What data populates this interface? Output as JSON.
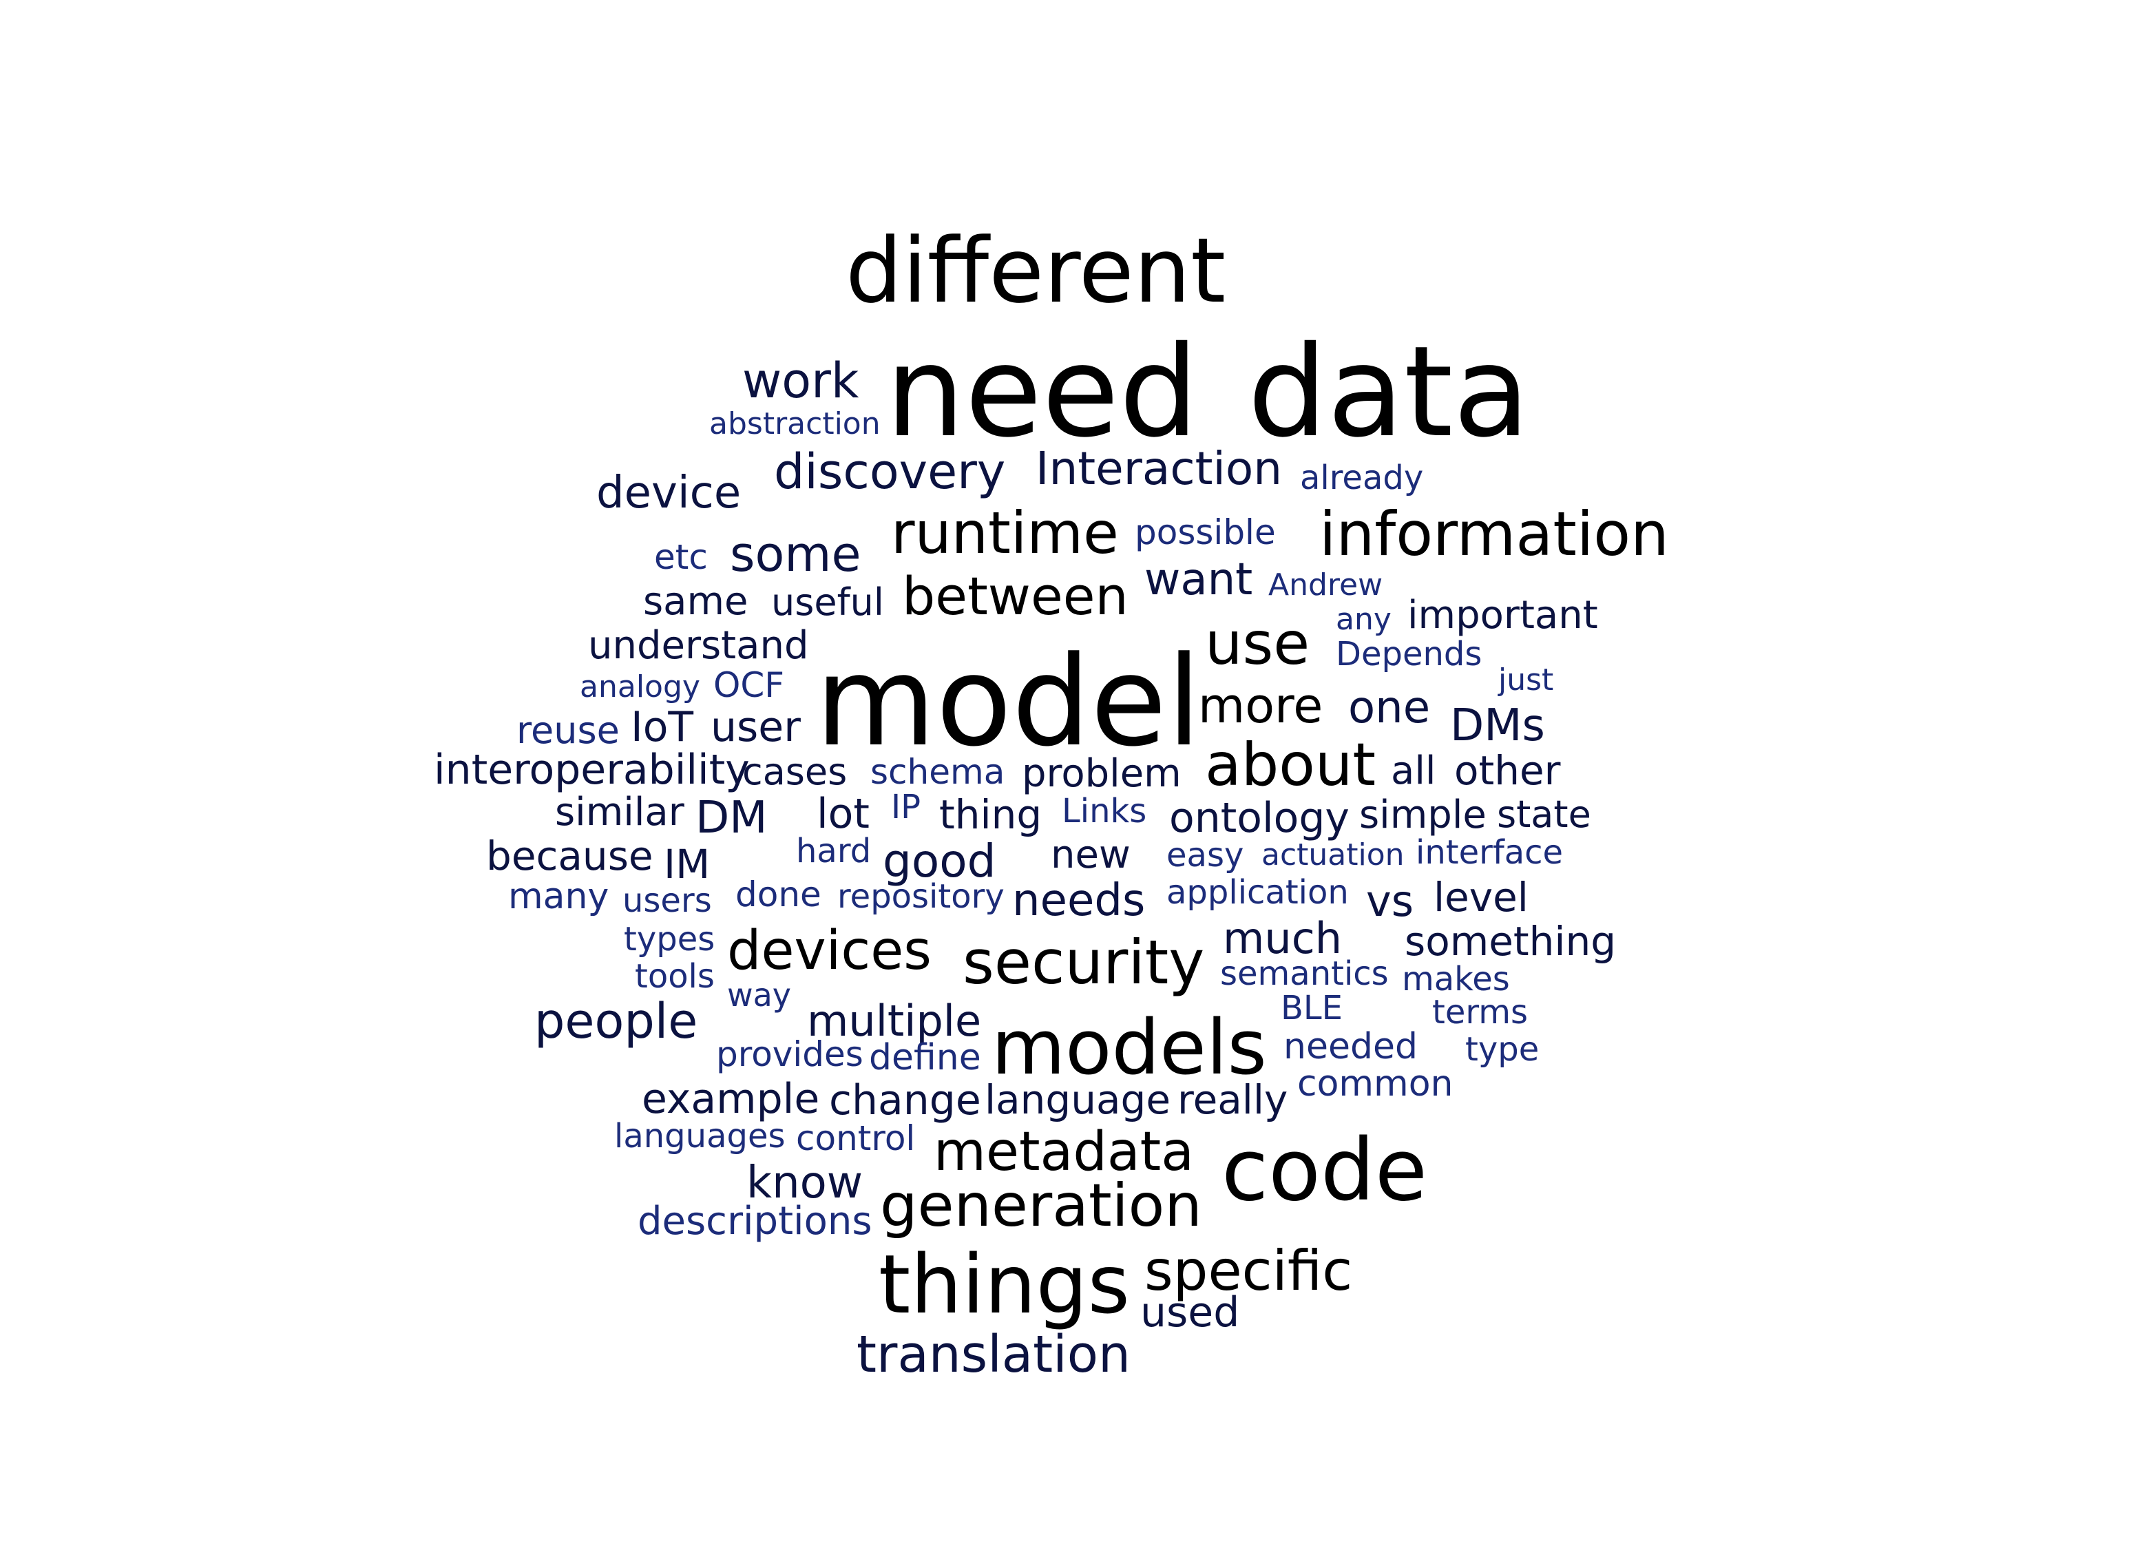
{
  "word_cloud": {
    "colors": {
      "large": "#000000",
      "medium": "#0b1240",
      "small": "#1c2c7a"
    },
    "words": [
      {
        "text": "different",
        "tier": "large"
      },
      {
        "text": "need",
        "tier": "large"
      },
      {
        "text": "data",
        "tier": "large"
      },
      {
        "text": "work",
        "tier": "medium"
      },
      {
        "text": "abstraction",
        "tier": "small"
      },
      {
        "text": "device",
        "tier": "medium"
      },
      {
        "text": "discovery",
        "tier": "medium"
      },
      {
        "text": "Interaction",
        "tier": "medium"
      },
      {
        "text": "already",
        "tier": "small"
      },
      {
        "text": "runtime",
        "tier": "large"
      },
      {
        "text": "possible",
        "tier": "small"
      },
      {
        "text": "information",
        "tier": "large"
      },
      {
        "text": "etc",
        "tier": "small"
      },
      {
        "text": "some",
        "tier": "medium"
      },
      {
        "text": "want",
        "tier": "medium"
      },
      {
        "text": "Andrew",
        "tier": "small"
      },
      {
        "text": "same",
        "tier": "medium"
      },
      {
        "text": "useful",
        "tier": "medium"
      },
      {
        "text": "between",
        "tier": "large"
      },
      {
        "text": "use",
        "tier": "large"
      },
      {
        "text": "any",
        "tier": "small"
      },
      {
        "text": "important",
        "tier": "medium"
      },
      {
        "text": "understand",
        "tier": "medium"
      },
      {
        "text": "Depends",
        "tier": "small"
      },
      {
        "text": "analogy",
        "tier": "small"
      },
      {
        "text": "OCF",
        "tier": "small"
      },
      {
        "text": "model",
        "tier": "large"
      },
      {
        "text": "just",
        "tier": "small"
      },
      {
        "text": "more",
        "tier": "large"
      },
      {
        "text": "one",
        "tier": "medium"
      },
      {
        "text": "reuse",
        "tier": "small"
      },
      {
        "text": "IoT",
        "tier": "medium"
      },
      {
        "text": "user",
        "tier": "medium"
      },
      {
        "text": "DMs",
        "tier": "medium"
      },
      {
        "text": "interoperability",
        "tier": "medium"
      },
      {
        "text": "cases",
        "tier": "medium"
      },
      {
        "text": "schema",
        "tier": "small"
      },
      {
        "text": "problem",
        "tier": "medium"
      },
      {
        "text": "about",
        "tier": "large"
      },
      {
        "text": "all",
        "tier": "medium"
      },
      {
        "text": "other",
        "tier": "medium"
      },
      {
        "text": "similar",
        "tier": "medium"
      },
      {
        "text": "DM",
        "tier": "medium"
      },
      {
        "text": "lot",
        "tier": "medium"
      },
      {
        "text": "IP",
        "tier": "small"
      },
      {
        "text": "thing",
        "tier": "medium"
      },
      {
        "text": "Links",
        "tier": "small"
      },
      {
        "text": "ontology",
        "tier": "medium"
      },
      {
        "text": "simple",
        "tier": "medium"
      },
      {
        "text": "state",
        "tier": "medium"
      },
      {
        "text": "because",
        "tier": "medium"
      },
      {
        "text": "IM",
        "tier": "medium"
      },
      {
        "text": "hard",
        "tier": "small"
      },
      {
        "text": "good",
        "tier": "medium"
      },
      {
        "text": "new",
        "tier": "medium"
      },
      {
        "text": "easy",
        "tier": "small"
      },
      {
        "text": "actuation",
        "tier": "small"
      },
      {
        "text": "interface",
        "tier": "small"
      },
      {
        "text": "many",
        "tier": "small"
      },
      {
        "text": "users",
        "tier": "small"
      },
      {
        "text": "done",
        "tier": "small"
      },
      {
        "text": "repository",
        "tier": "small"
      },
      {
        "text": "needs",
        "tier": "medium"
      },
      {
        "text": "application",
        "tier": "small"
      },
      {
        "text": "vs",
        "tier": "medium"
      },
      {
        "text": "level",
        "tier": "medium"
      },
      {
        "text": "types",
        "tier": "small"
      },
      {
        "text": "devices",
        "tier": "large"
      },
      {
        "text": "security",
        "tier": "large"
      },
      {
        "text": "much",
        "tier": "medium"
      },
      {
        "text": "something",
        "tier": "medium"
      },
      {
        "text": "tools",
        "tier": "small"
      },
      {
        "text": "semantics",
        "tier": "small"
      },
      {
        "text": "makes",
        "tier": "small"
      },
      {
        "text": "way",
        "tier": "small"
      },
      {
        "text": "people",
        "tier": "medium"
      },
      {
        "text": "multiple",
        "tier": "medium"
      },
      {
        "text": "models",
        "tier": "large"
      },
      {
        "text": "BLE",
        "tier": "small"
      },
      {
        "text": "terms",
        "tier": "small"
      },
      {
        "text": "provides",
        "tier": "small"
      },
      {
        "text": "define",
        "tier": "small"
      },
      {
        "text": "needed",
        "tier": "small"
      },
      {
        "text": "type",
        "tier": "small"
      },
      {
        "text": "example",
        "tier": "medium"
      },
      {
        "text": "change",
        "tier": "medium"
      },
      {
        "text": "language",
        "tier": "medium"
      },
      {
        "text": "really",
        "tier": "medium"
      },
      {
        "text": "common",
        "tier": "small"
      },
      {
        "text": "languages",
        "tier": "small"
      },
      {
        "text": "control",
        "tier": "small"
      },
      {
        "text": "metadata",
        "tier": "large"
      },
      {
        "text": "code",
        "tier": "large"
      },
      {
        "text": "know",
        "tier": "medium"
      },
      {
        "text": "generation",
        "tier": "large"
      },
      {
        "text": "descriptions",
        "tier": "small"
      },
      {
        "text": "things",
        "tier": "large"
      },
      {
        "text": "specific",
        "tier": "large"
      },
      {
        "text": "used",
        "tier": "medium"
      },
      {
        "text": "translation",
        "tier": "medium"
      }
    ]
  }
}
